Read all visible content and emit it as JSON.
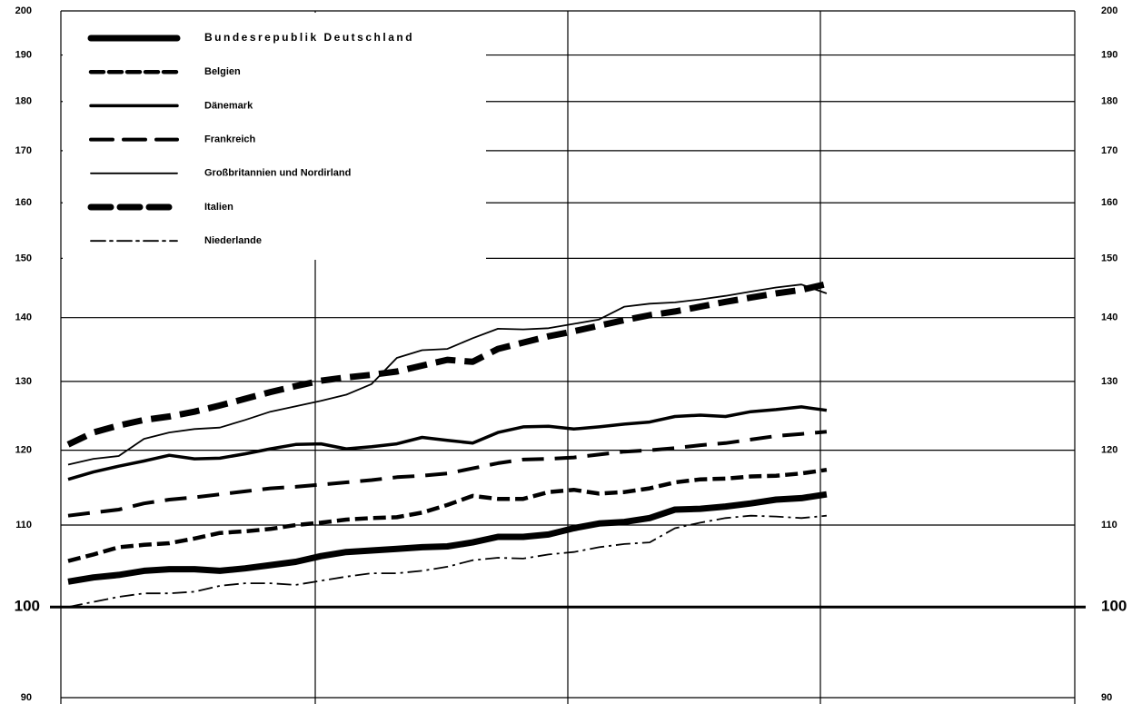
{
  "chart_data": {
    "type": "line",
    "categories": [
      null,
      null,
      null,
      null,
      null,
      null,
      null,
      null,
      null,
      null,
      null,
      null,
      null,
      null,
      null,
      null,
      null,
      null,
      null,
      null,
      null,
      null,
      null,
      null,
      null,
      null,
      null,
      null,
      null,
      null,
      null
    ],
    "series": [
      {
        "name": "Bundesrepublik Deutschland",
        "color": "#000",
        "values": [
          103.0,
          103.5,
          103.8,
          104.3,
          104.5,
          104.5,
          104.3,
          104.6,
          105.0,
          105.4,
          106.1,
          106.6,
          106.8,
          107.0,
          107.2,
          107.3,
          107.8,
          108.5,
          108.5,
          108.8,
          109.6,
          110.2,
          110.4,
          110.9,
          112.0,
          112.1,
          112.4,
          112.8,
          113.3,
          113.5,
          114.0
        ]
      },
      {
        "name": "Belgien",
        "color": "#000",
        "values": [
          105.5,
          106.3,
          107.2,
          107.5,
          107.7,
          108.3,
          109.0,
          109.2,
          109.5,
          110.0,
          110.3,
          110.7,
          110.9,
          111.0,
          111.6,
          112.6,
          113.8,
          113.4,
          113.4,
          114.3,
          114.6,
          114.1,
          114.3,
          114.8,
          115.6,
          116.0,
          116.1,
          116.4,
          116.5,
          116.8,
          117.3
        ]
      },
      {
        "name": "Dänemark",
        "color": "#000",
        "values": [
          116.0,
          117.0,
          117.8,
          118.5,
          119.3,
          118.8,
          118.9,
          119.5,
          120.2,
          120.8,
          120.9,
          120.2,
          120.5,
          120.9,
          121.8,
          121.4,
          121.0,
          122.5,
          123.3,
          123.4,
          123.0,
          123.3,
          123.7,
          124.0,
          124.8,
          125.0,
          124.8,
          125.5,
          125.8,
          126.2,
          125.7
        ]
      },
      {
        "name": "Frankreich",
        "color": "#000",
        "values": [
          111.2,
          111.6,
          112.0,
          112.8,
          113.3,
          113.6,
          114.0,
          114.4,
          114.8,
          115.0,
          115.3,
          115.6,
          115.9,
          116.3,
          116.5,
          116.8,
          117.5,
          118.2,
          118.7,
          118.8,
          119.0,
          119.4,
          119.8,
          120.0,
          120.3,
          120.7,
          121.0,
          121.5,
          122.0,
          122.3,
          122.6
        ]
      },
      {
        "name": "Großbritannien und Nordirland",
        "color": "#000",
        "values": [
          118.0,
          118.8,
          119.2,
          121.6,
          122.5,
          123.0,
          123.2,
          124.3,
          125.5,
          126.3,
          127.1,
          128.0,
          129.6,
          133.6,
          134.8,
          135.0,
          136.7,
          138.2,
          138.1,
          138.3,
          139.0,
          139.7,
          141.8,
          142.3,
          142.5,
          143.0,
          143.6,
          144.3,
          145.0,
          145.5,
          144.0
        ]
      },
      {
        "name": "Italien",
        "color": "#000",
        "values": [
          120.8,
          122.5,
          123.5,
          124.3,
          124.8,
          125.5,
          126.4,
          127.4,
          128.4,
          129.3,
          130.1,
          130.6,
          131.0,
          131.5,
          132.4,
          133.3,
          133.0,
          135.0,
          136.0,
          137.0,
          137.8,
          138.7,
          139.6,
          140.4,
          141.0,
          141.8,
          142.6,
          143.3,
          144.0,
          144.6,
          145.6
        ]
      },
      {
        "name": "Niederlande",
        "color": "#000",
        "values": [
          100.0,
          100.6,
          101.2,
          101.6,
          101.6,
          101.8,
          102.5,
          102.8,
          102.8,
          102.6,
          103.1,
          103.6,
          104.0,
          104.0,
          104.3,
          104.8,
          105.6,
          105.9,
          105.8,
          106.3,
          106.6,
          107.2,
          107.6,
          107.8,
          109.6,
          110.3,
          110.9,
          111.2,
          111.1,
          110.9,
          111.2
        ]
      }
    ],
    "ylim": [
      90,
      200
    ],
    "yticks": [
      90,
      100,
      110,
      120,
      130,
      140,
      150,
      160,
      170,
      180,
      190,
      200
    ],
    "log_scale": true,
    "grid": true
  }
}
